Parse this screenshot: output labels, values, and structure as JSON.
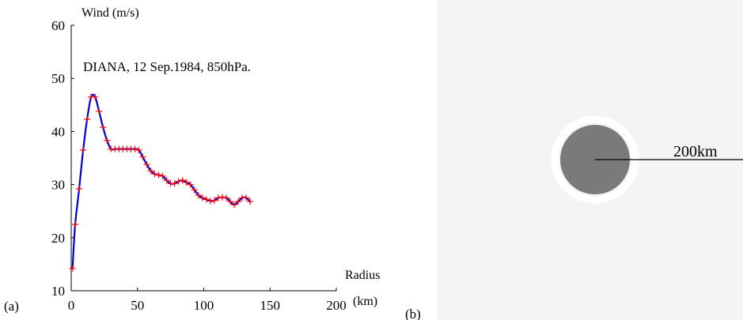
{
  "chart_data": [
    {
      "type": "line",
      "panel_label": "(a)",
      "title": "DIANA, 12 Sep.1984, 850hPa.",
      "ylabel": "Wind (m/s)",
      "xlabel_line1": "Radius",
      "xlabel_line2": "(km)",
      "xlim": [
        0,
        200
      ],
      "ylim": [
        10,
        60
      ],
      "x_ticks": [
        0,
        50,
        100,
        150,
        200
      ],
      "y_ticks": [
        10,
        20,
        30,
        40,
        50,
        60
      ],
      "grid": false,
      "colors": {
        "line": "#0000dd",
        "markers": "#ff0000",
        "axes": "#000000"
      },
      "series": [
        {
          "x": [
            1,
            3,
            6,
            9,
            12,
            15,
            18,
            21,
            24,
            27,
            30,
            33,
            36,
            39,
            42,
            45,
            48,
            51,
            54,
            57,
            60,
            63,
            66,
            69,
            72,
            75,
            78,
            81,
            84,
            87,
            90,
            93,
            96,
            99,
            102,
            105,
            108,
            111,
            114,
            117,
            120,
            123,
            126,
            129,
            132,
            135
          ],
          "y": [
            14.2,
            22.5,
            29.2,
            36.5,
            42.3,
            46.5,
            46.5,
            43.8,
            40.8,
            38.3,
            36.7,
            36.7,
            36.7,
            36.7,
            36.7,
            36.7,
            36.7,
            36.5,
            35.2,
            33.8,
            32.6,
            32.0,
            31.8,
            31.6,
            30.8,
            30.2,
            30.2,
            30.6,
            30.8,
            30.4,
            30.0,
            29.0,
            28.0,
            27.5,
            27.2,
            26.9,
            27.0,
            27.5,
            27.6,
            27.5,
            26.8,
            26.2,
            26.8,
            27.5,
            27.5,
            26.8
          ]
        }
      ]
    },
    {
      "type": "other",
      "panel_label": "(b)",
      "scale_label": "200km"
    }
  ]
}
